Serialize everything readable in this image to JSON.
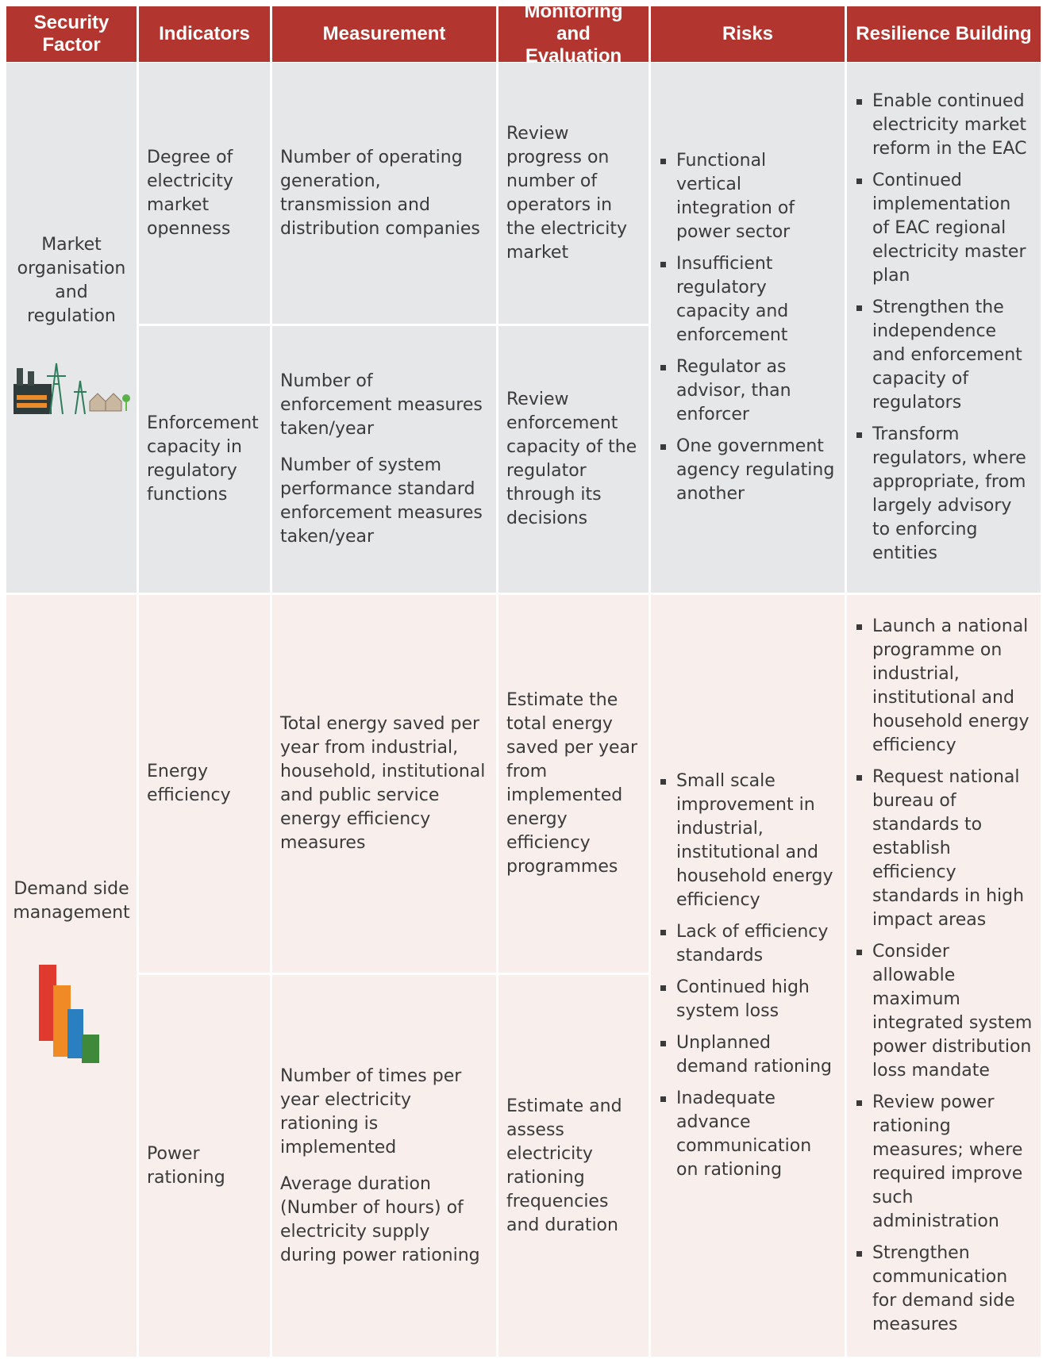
{
  "header": [
    "Security Factor",
    "Indicators",
    "Measurement",
    "Monitoring and Evaluation",
    "Risks",
    "Resilience Building"
  ],
  "sections": [
    {
      "factor": "Market organisation and regulation",
      "rows": [
        {
          "indicator": "Degree of electricity market openness",
          "measurement": [
            "Number of operating generation, transmission and distribution companies"
          ],
          "monitoring": "Review progress on number of operators in the electricity market"
        },
        {
          "indicator": "Enforcement capacity in regulatory functions",
          "measurement": [
            "Number of enforcement measures taken/year",
            "Number of system performance standard enforcement measures taken/year"
          ],
          "monitoring": "Review enforcement capacity of the regulator through its decisions"
        }
      ],
      "risks": [
        "Functional vertical integration of power sector",
        "Insufficient regulatory capacity and enforcement",
        "Regulator as advisor, than enforcer",
        "One government agency regulating another"
      ],
      "resilience": [
        "Enable continued electricity market reform in the EAC",
        "Continued implementation of EAC regional electricity master plan",
        "Strengthen the independence and enforcement capacity of regulators",
        "Transform regulators, where appropriate, from largely advisory to enforcing entities"
      ]
    },
    {
      "factor": "Demand side management",
      "rows": [
        {
          "indicator": "Energy efficiency",
          "measurement": [
            "Total energy saved per year from industrial, household, institutional and public service energy efficiency measures"
          ],
          "monitoring": "Estimate the total energy saved per year from implemented energy efficiency programmes"
        },
        {
          "indicator": "Power rationing",
          "measurement": [
            "Number of times per year electricity rationing is implemented",
            "Average duration (Number of hours) of electricity supply during power rationing"
          ],
          "monitoring": "Estimate and assess electricity rationing frequencies and duration"
        }
      ],
      "risks": [
        "Small scale improvement in industrial, institutional and household energy efficiency",
        "Lack of efficiency standards",
        "Continued high system loss",
        "Unplanned demand rationing",
        "Inadequate advance communication on rationing"
      ],
      "resilience": [
        "Launch a national programme on industrial, institutional and household energy efficiency",
        "Request national bureau of standards to establish efficiency standards in high impact areas",
        "Consider allowable maximum integrated system power distribution loss mandate",
        "Review power rationing measures; where required improve such administration",
        "Strengthen communication for demand side measures"
      ]
    }
  ]
}
